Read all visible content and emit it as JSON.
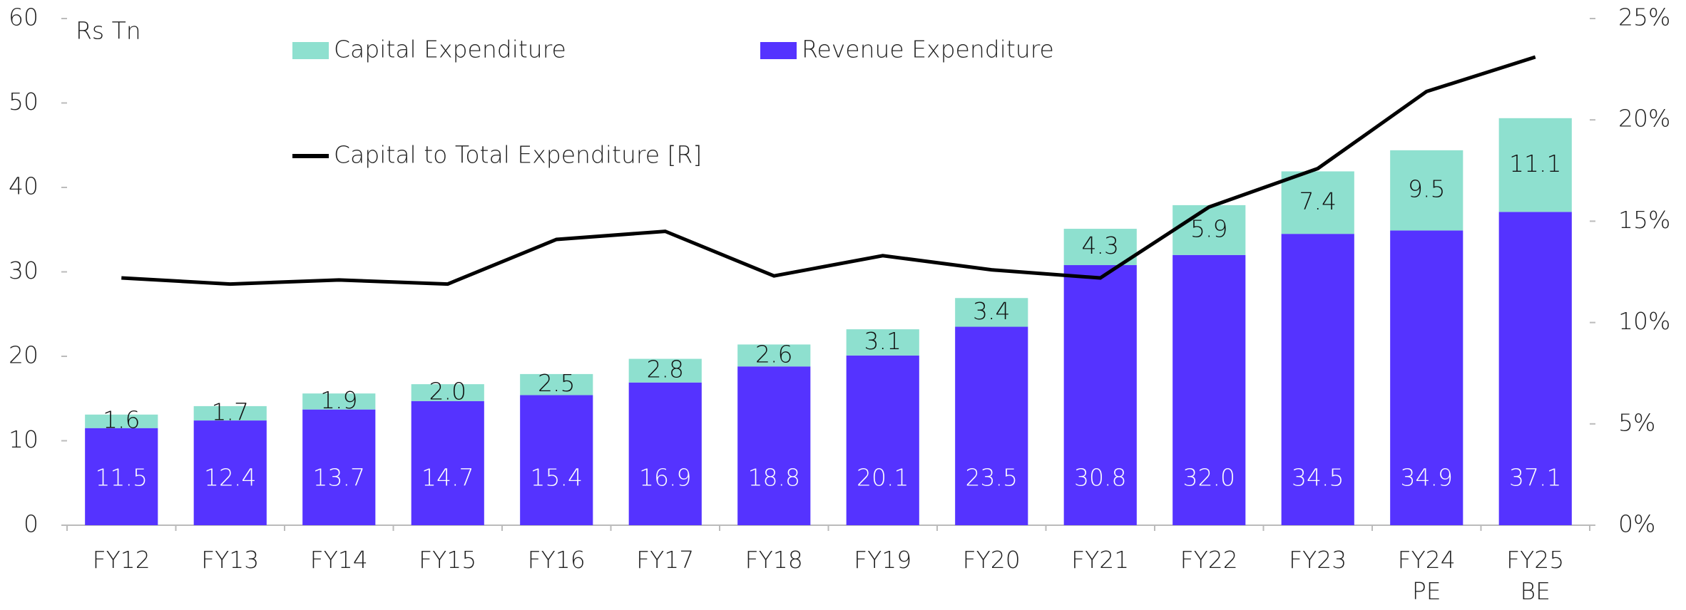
{
  "chart_data": {
    "type": "stacked_bar_line",
    "y_label": "Rs Tn",
    "categories": [
      "FY12",
      "FY13",
      "FY14",
      "FY15",
      "FY16",
      "FY17",
      "FY18",
      "FY19",
      "FY20",
      "FY21",
      "FY22",
      "FY23",
      "FY24 PE",
      "FY25 BE"
    ],
    "series": [
      {
        "name": "Revenue Expenditure",
        "color": "#5533ff",
        "label_color": "#ffffff",
        "values": [
          11.5,
          12.4,
          13.7,
          14.7,
          15.4,
          16.9,
          18.8,
          20.1,
          23.5,
          30.8,
          32.0,
          34.5,
          34.9,
          37.1
        ],
        "value_labels": [
          "11.5",
          "12.4",
          "13.7",
          "14.7",
          "15.4",
          "16.9",
          "18.8",
          "20.1",
          "23.5",
          "30.8",
          "32.0",
          "34.5",
          "34.9",
          "37.1"
        ]
      },
      {
        "name": "Capital Expenditure",
        "color": "#8ee0cf",
        "label_color": "#111111",
        "values": [
          1.6,
          1.7,
          1.9,
          2.0,
          2.5,
          2.8,
          2.6,
          3.1,
          3.4,
          4.3,
          5.9,
          7.4,
          9.5,
          11.1
        ],
        "value_labels": [
          "1.6",
          "1.7",
          "1.9",
          "2.0",
          "2.5",
          "2.8",
          "2.6",
          "3.1",
          "3.4",
          "4.3",
          "5.9",
          "7.4",
          "9.5",
          "11.1"
        ]
      },
      {
        "name": "Capital to Total Expenditure [R]",
        "color": "#000000",
        "type": "line",
        "axis": "y2",
        "values": [
          12.2,
          11.9,
          12.1,
          11.9,
          14.1,
          14.5,
          12.3,
          13.3,
          12.6,
          12.2,
          15.7,
          17.6,
          21.4,
          23.1
        ]
      }
    ],
    "ylim": [
      0,
      60
    ],
    "yticks": [
      0,
      10,
      20,
      30,
      40,
      50,
      60
    ],
    "y2lim": [
      0,
      25
    ],
    "y2ticks": [
      {
        "value": 0,
        "label": "0%"
      },
      {
        "value": 5,
        "label": "5%"
      },
      {
        "value": 10,
        "label": "10%"
      },
      {
        "value": 15,
        "label": "15%"
      },
      {
        "value": 20,
        "label": "20%"
      },
      {
        "value": 25,
        "label": "25%"
      }
    ]
  }
}
